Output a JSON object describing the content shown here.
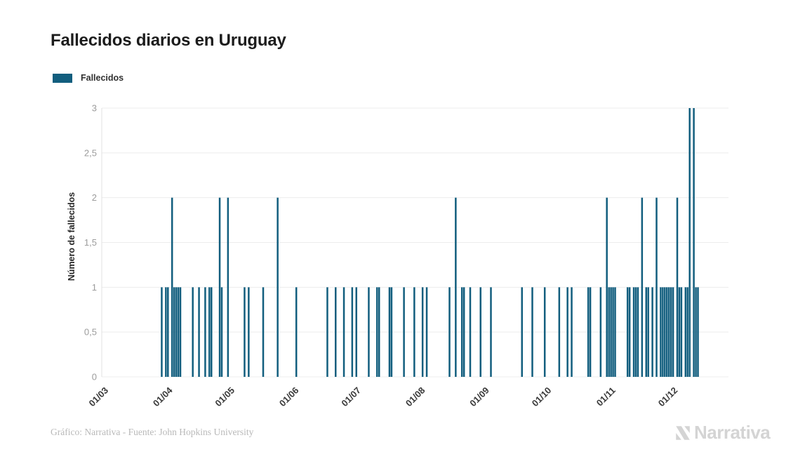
{
  "header": {
    "title": "Fallecidos diarios en Uruguay"
  },
  "legend": {
    "label": "Fallecidos",
    "color": "#125E7E"
  },
  "theme": {
    "bar_color": "#125E7E",
    "grid_color": "#ececec",
    "axis_color": "#e2e2e2",
    "y_tick_color": "#9c9c9c",
    "x_tick_color": "#3a3a3a",
    "title_color": "#1c1c1c",
    "credit_color": "#b9b9b9",
    "brand_color": "#d4d4d4"
  },
  "footer": {
    "credit": "Gráfico: Narrativa - Fuente: John Hopkins University",
    "brand": "Narrativa"
  },
  "chart_data": {
    "type": "bar",
    "title": "Fallecidos diarios en Uruguay",
    "xlabel": "",
    "ylabel": "Número de fallecidos",
    "ylim": [
      0,
      3
    ],
    "grid": true,
    "legend_position": "top-left",
    "x_range": [
      "2020-03-01",
      "2020-12-31"
    ],
    "y_ticks": [
      {
        "value": 0,
        "label": "0"
      },
      {
        "value": 0.5,
        "label": "0,5"
      },
      {
        "value": 1,
        "label": "1"
      },
      {
        "value": 1.5,
        "label": "1,5"
      },
      {
        "value": 2,
        "label": "2"
      },
      {
        "value": 2.5,
        "label": "2,5"
      },
      {
        "value": 3,
        "label": "3"
      }
    ],
    "x_ticks": [
      {
        "date": "2020-03-01",
        "label": "01/03"
      },
      {
        "date": "2020-04-01",
        "label": "01/04"
      },
      {
        "date": "2020-05-01",
        "label": "01/05"
      },
      {
        "date": "2020-06-01",
        "label": "01/06"
      },
      {
        "date": "2020-07-01",
        "label": "01/07"
      },
      {
        "date": "2020-08-01",
        "label": "01/08"
      },
      {
        "date": "2020-09-01",
        "label": "01/09"
      },
      {
        "date": "2020-10-01",
        "label": "01/10"
      },
      {
        "date": "2020-11-01",
        "label": "01/11"
      },
      {
        "date": "2020-12-01",
        "label": "01/12"
      }
    ],
    "series": [
      {
        "name": "Fallecidos",
        "color": "#125E7E",
        "points": [
          {
            "date": "2020-04-01",
            "value": 1
          },
          {
            "date": "2020-04-03",
            "value": 1
          },
          {
            "date": "2020-04-04",
            "value": 1
          },
          {
            "date": "2020-04-06",
            "value": 2
          },
          {
            "date": "2020-04-07",
            "value": 1
          },
          {
            "date": "2020-04-08",
            "value": 1
          },
          {
            "date": "2020-04-09",
            "value": 1
          },
          {
            "date": "2020-04-10",
            "value": 1
          },
          {
            "date": "2020-04-16",
            "value": 1
          },
          {
            "date": "2020-04-19",
            "value": 1
          },
          {
            "date": "2020-04-22",
            "value": 1
          },
          {
            "date": "2020-04-24",
            "value": 1
          },
          {
            "date": "2020-04-25",
            "value": 1
          },
          {
            "date": "2020-04-29",
            "value": 2
          },
          {
            "date": "2020-04-30",
            "value": 1
          },
          {
            "date": "2020-05-03",
            "value": 2
          },
          {
            "date": "2020-05-11",
            "value": 1
          },
          {
            "date": "2020-05-13",
            "value": 1
          },
          {
            "date": "2020-05-20",
            "value": 1
          },
          {
            "date": "2020-05-27",
            "value": 2
          },
          {
            "date": "2020-06-05",
            "value": 1
          },
          {
            "date": "2020-06-20",
            "value": 1
          },
          {
            "date": "2020-06-24",
            "value": 1
          },
          {
            "date": "2020-06-28",
            "value": 1
          },
          {
            "date": "2020-07-02",
            "value": 1
          },
          {
            "date": "2020-07-04",
            "value": 1
          },
          {
            "date": "2020-07-10",
            "value": 1
          },
          {
            "date": "2020-07-14",
            "value": 1
          },
          {
            "date": "2020-07-15",
            "value": 1
          },
          {
            "date": "2020-07-20",
            "value": 1
          },
          {
            "date": "2020-07-21",
            "value": 1
          },
          {
            "date": "2020-07-27",
            "value": 1
          },
          {
            "date": "2020-08-01",
            "value": 1
          },
          {
            "date": "2020-08-05",
            "value": 1
          },
          {
            "date": "2020-08-07",
            "value": 1
          },
          {
            "date": "2020-08-18",
            "value": 1
          },
          {
            "date": "2020-08-21",
            "value": 2
          },
          {
            "date": "2020-08-24",
            "value": 1
          },
          {
            "date": "2020-08-25",
            "value": 1
          },
          {
            "date": "2020-08-28",
            "value": 1
          },
          {
            "date": "2020-09-02",
            "value": 1
          },
          {
            "date": "2020-09-07",
            "value": 1
          },
          {
            "date": "2020-09-22",
            "value": 1
          },
          {
            "date": "2020-09-27",
            "value": 1
          },
          {
            "date": "2020-10-03",
            "value": 1
          },
          {
            "date": "2020-10-10",
            "value": 1
          },
          {
            "date": "2020-10-14",
            "value": 1
          },
          {
            "date": "2020-10-16",
            "value": 1
          },
          {
            "date": "2020-10-24",
            "value": 1
          },
          {
            "date": "2020-10-25",
            "value": 1
          },
          {
            "date": "2020-10-30",
            "value": 1
          },
          {
            "date": "2020-11-02",
            "value": 2
          },
          {
            "date": "2020-11-03",
            "value": 1
          },
          {
            "date": "2020-11-04",
            "value": 1
          },
          {
            "date": "2020-11-05",
            "value": 1
          },
          {
            "date": "2020-11-06",
            "value": 1
          },
          {
            "date": "2020-11-12",
            "value": 1
          },
          {
            "date": "2020-11-13",
            "value": 1
          },
          {
            "date": "2020-11-15",
            "value": 1
          },
          {
            "date": "2020-11-16",
            "value": 1
          },
          {
            "date": "2020-11-17",
            "value": 1
          },
          {
            "date": "2020-11-19",
            "value": 2
          },
          {
            "date": "2020-11-21",
            "value": 1
          },
          {
            "date": "2020-11-22",
            "value": 1
          },
          {
            "date": "2020-11-24",
            "value": 1
          },
          {
            "date": "2020-11-26",
            "value": 2
          },
          {
            "date": "2020-11-28",
            "value": 1
          },
          {
            "date": "2020-11-29",
            "value": 1
          },
          {
            "date": "2020-11-30",
            "value": 1
          },
          {
            "date": "2020-12-01",
            "value": 1
          },
          {
            "date": "2020-12-02",
            "value": 1
          },
          {
            "date": "2020-12-03",
            "value": 1
          },
          {
            "date": "2020-12-04",
            "value": 1
          },
          {
            "date": "2020-12-06",
            "value": 2
          },
          {
            "date": "2020-12-07",
            "value": 1
          },
          {
            "date": "2020-12-08",
            "value": 1
          },
          {
            "date": "2020-12-10",
            "value": 1
          },
          {
            "date": "2020-12-11",
            "value": 1
          },
          {
            "date": "2020-12-12",
            "value": 3
          },
          {
            "date": "2020-12-14",
            "value": 3
          },
          {
            "date": "2020-12-15",
            "value": 1
          },
          {
            "date": "2020-12-16",
            "value": 1
          }
        ]
      }
    ]
  }
}
